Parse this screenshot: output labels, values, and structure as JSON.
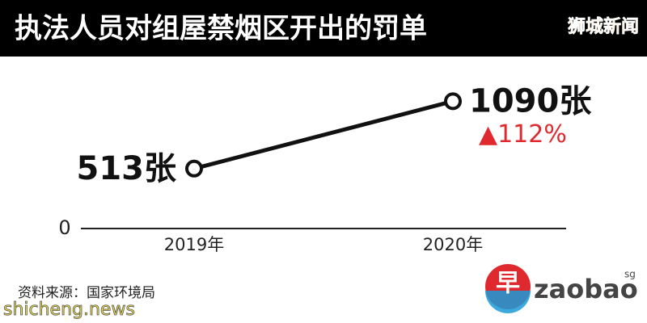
{
  "chart_data": {
    "type": "line",
    "title": "执法人员对组屋禁烟区开出的罚单",
    "categories": [
      "2019年",
      "2020年"
    ],
    "values": [
      513,
      1090
    ],
    "value_labels": [
      "513张",
      "1090张"
    ],
    "color": "#111111",
    "ylim": [
      0,
      1300
    ],
    "yticks": [
      0
    ],
    "annotation": "▲112%",
    "annotation_color": "#e0292e",
    "source": "资料来源：国家环境局"
  },
  "logo": {
    "mark": "早",
    "text": "zaobao",
    "superscript": "sg"
  },
  "watermarks": [
    "狮城新闻",
    "shicheng.news"
  ]
}
